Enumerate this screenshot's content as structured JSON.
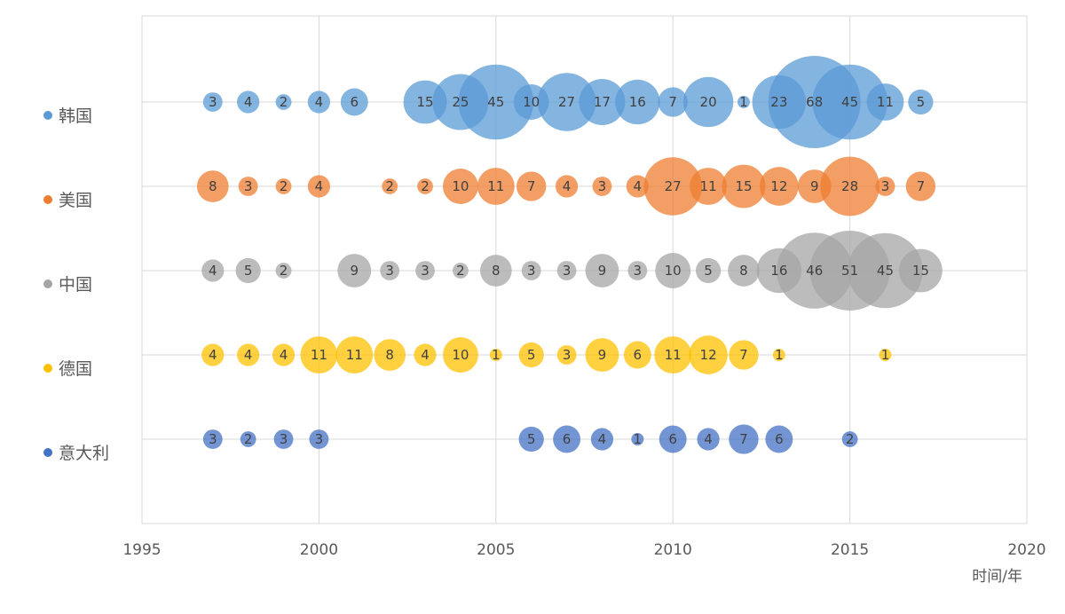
{
  "chart_data": {
    "type": "bubble",
    "xlabel": "时间/年",
    "xlim": [
      1995,
      2020
    ],
    "xticks": [
      1995,
      2000,
      2005,
      2010,
      2015,
      2020
    ],
    "grid": true,
    "legend_position": "left",
    "series": [
      {
        "name": "韩国",
        "color": "#5B9BD5",
        "points": [
          {
            "x": 1997,
            "v": 3
          },
          {
            "x": 1998,
            "v": 4
          },
          {
            "x": 1999,
            "v": 2
          },
          {
            "x": 2000,
            "v": 4
          },
          {
            "x": 2001,
            "v": 6
          },
          {
            "x": 2003,
            "v": 15
          },
          {
            "x": 2004,
            "v": 25
          },
          {
            "x": 2005,
            "v": 45
          },
          {
            "x": 2006,
            "v": 10
          },
          {
            "x": 2007,
            "v": 27
          },
          {
            "x": 2008,
            "v": 17
          },
          {
            "x": 2009,
            "v": 16
          },
          {
            "x": 2010,
            "v": 7
          },
          {
            "x": 2011,
            "v": 20
          },
          {
            "x": 2012,
            "v": 1
          },
          {
            "x": 2013,
            "v": 23
          },
          {
            "x": 2014,
            "v": 68
          },
          {
            "x": 2015,
            "v": 45
          },
          {
            "x": 2016,
            "v": 11
          },
          {
            "x": 2017,
            "v": 5
          }
        ]
      },
      {
        "name": "美国",
        "color": "#ED7D31",
        "points": [
          {
            "x": 1997,
            "v": 8
          },
          {
            "x": 1998,
            "v": 3
          },
          {
            "x": 1999,
            "v": 2
          },
          {
            "x": 2000,
            "v": 4
          },
          {
            "x": 2002,
            "v": 2
          },
          {
            "x": 2003,
            "v": 2
          },
          {
            "x": 2004,
            "v": 10
          },
          {
            "x": 2005,
            "v": 11
          },
          {
            "x": 2006,
            "v": 7
          },
          {
            "x": 2007,
            "v": 4
          },
          {
            "x": 2008,
            "v": 3
          },
          {
            "x": 2009,
            "v": 4
          },
          {
            "x": 2010,
            "v": 27
          },
          {
            "x": 2011,
            "v": 11
          },
          {
            "x": 2012,
            "v": 15
          },
          {
            "x": 2013,
            "v": 12
          },
          {
            "x": 2014,
            "v": 9
          },
          {
            "x": 2015,
            "v": 28
          },
          {
            "x": 2016,
            "v": 3
          },
          {
            "x": 2017,
            "v": 7
          }
        ]
      },
      {
        "name": "中国",
        "color": "#A5A5A5",
        "points": [
          {
            "x": 1997,
            "v": 4
          },
          {
            "x": 1998,
            "v": 5
          },
          {
            "x": 1999,
            "v": 2
          },
          {
            "x": 2001,
            "v": 9
          },
          {
            "x": 2002,
            "v": 3
          },
          {
            "x": 2003,
            "v": 3
          },
          {
            "x": 2004,
            "v": 2
          },
          {
            "x": 2005,
            "v": 8
          },
          {
            "x": 2006,
            "v": 3
          },
          {
            "x": 2007,
            "v": 3
          },
          {
            "x": 2008,
            "v": 9
          },
          {
            "x": 2009,
            "v": 3
          },
          {
            "x": 2010,
            "v": 10
          },
          {
            "x": 2011,
            "v": 5
          },
          {
            "x": 2012,
            "v": 8
          },
          {
            "x": 2013,
            "v": 16
          },
          {
            "x": 2014,
            "v": 46
          },
          {
            "x": 2015,
            "v": 51
          },
          {
            "x": 2016,
            "v": 45
          },
          {
            "x": 2017,
            "v": 15
          }
        ]
      },
      {
        "name": "德国",
        "color": "#FFC000",
        "points": [
          {
            "x": 1997,
            "v": 4
          },
          {
            "x": 1998,
            "v": 4
          },
          {
            "x": 1999,
            "v": 4
          },
          {
            "x": 2000,
            "v": 11
          },
          {
            "x": 2001,
            "v": 11
          },
          {
            "x": 2002,
            "v": 8
          },
          {
            "x": 2003,
            "v": 4
          },
          {
            "x": 2004,
            "v": 10
          },
          {
            "x": 2005,
            "v": 1
          },
          {
            "x": 2006,
            "v": 5
          },
          {
            "x": 2007,
            "v": 3
          },
          {
            "x": 2008,
            "v": 9
          },
          {
            "x": 2009,
            "v": 6
          },
          {
            "x": 2010,
            "v": 11
          },
          {
            "x": 2011,
            "v": 12
          },
          {
            "x": 2012,
            "v": 7
          },
          {
            "x": 2013,
            "v": 1
          },
          {
            "x": 2016,
            "v": 1
          }
        ]
      },
      {
        "name": "意大利",
        "color": "#4472C4",
        "points": [
          {
            "x": 1997,
            "v": 3
          },
          {
            "x": 1998,
            "v": 2
          },
          {
            "x": 1999,
            "v": 3
          },
          {
            "x": 2000,
            "v": 3
          },
          {
            "x": 2006,
            "v": 5
          },
          {
            "x": 2007,
            "v": 6
          },
          {
            "x": 2008,
            "v": 4
          },
          {
            "x": 2009,
            "v": 1
          },
          {
            "x": 2010,
            "v": 6
          },
          {
            "x": 2011,
            "v": 4
          },
          {
            "x": 2012,
            "v": 7
          },
          {
            "x": 2013,
            "v": 6
          },
          {
            "x": 2015,
            "v": 2
          }
        ]
      }
    ]
  }
}
